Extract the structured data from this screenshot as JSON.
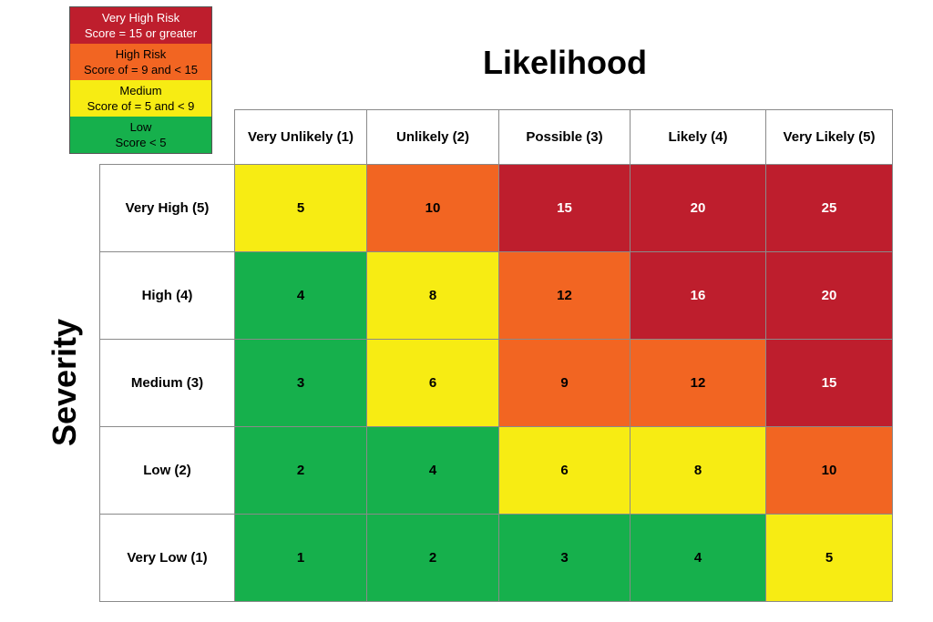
{
  "legend": [
    {
      "label": "Very High Risk",
      "criteria": "Score = 15 or greater",
      "color": "#be1e2d",
      "text_color": "#ffffff"
    },
    {
      "label": "High Risk",
      "criteria": "Score of = 9 and < 15",
      "color": "#f26522",
      "text_color": "#000000"
    },
    {
      "label": "Medium",
      "criteria": "Score of = 5 and < 9",
      "color": "#f7ec13",
      "text_color": "#000000"
    },
    {
      "label": "Low",
      "criteria": "Score < 5",
      "color": "#16b04c",
      "text_color": "#000000"
    }
  ],
  "likelihood_title": "Likelihood",
  "severity_title": "Severity",
  "likelihood_levels": [
    "Very Unlikely (1)",
    "Unlikely (2)",
    "Possible (3)",
    "Likely (4)",
    "Very Likely (5)"
  ],
  "severity_levels": [
    "Very High (5)",
    "High (4)",
    "Medium (3)",
    "Low (2)",
    "Very Low (1)"
  ],
  "scores": [
    [
      5,
      10,
      15,
      20,
      25
    ],
    [
      4,
      8,
      12,
      16,
      20
    ],
    [
      3,
      6,
      9,
      12,
      15
    ],
    [
      2,
      4,
      6,
      8,
      10
    ],
    [
      1,
      2,
      3,
      4,
      5
    ]
  ]
}
